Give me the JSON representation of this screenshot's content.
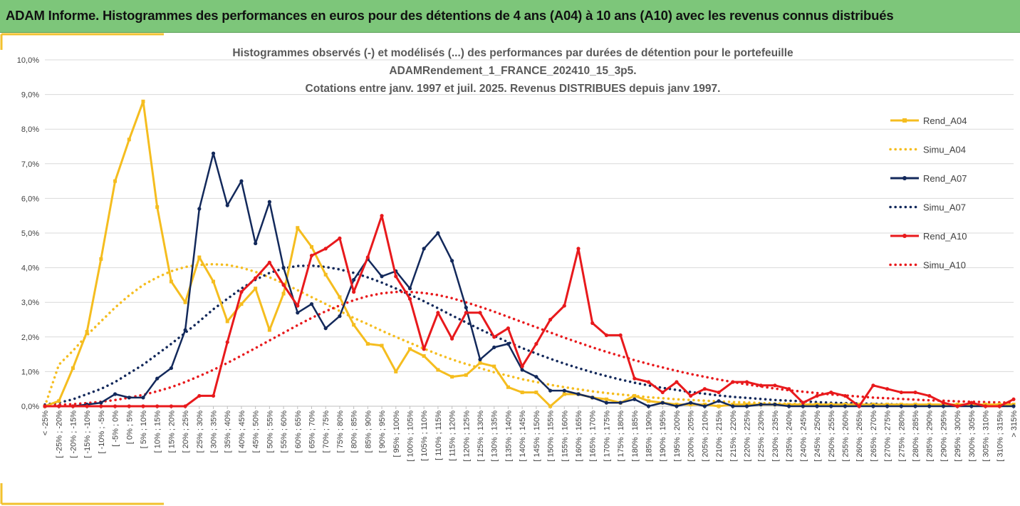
{
  "banner": {
    "title": "ADAM Informe. Histogrammes des performances en euros pour des détentions de 4 ans (A04) à 10 ans (A10) avec les revenus connus distribués"
  },
  "colors": {
    "banner_bg": "#7dc67a",
    "frame_accent": "#f2c12e",
    "A04": "#f5bd1f",
    "A07": "#13295b",
    "A10": "#e8191c"
  },
  "chart_data": {
    "type": "line",
    "title": [
      "Histogrammes observés (-) et modélisés (...) des performances par durées de détention pour le portefeuille",
      "ADAMRendement_1_FRANCE_202410_15_3p5.",
      "Cotations entre janv. 1997 et juil. 2025. Revenus DISTRIBUES depuis janv 1997."
    ],
    "ylim": [
      0,
      10
    ],
    "yticks": [
      "0,0%",
      "1,0%",
      "2,0%",
      "3,0%",
      "4,0%",
      "5,0%",
      "6,0%",
      "7,0%",
      "8,0%",
      "9,0%",
      "10,0%"
    ],
    "legend_position": "right",
    "categories": [
      "< -25%",
      "[ -25% ; -20%",
      "[ -20% ; -15%",
      "[ -15% ; -10%",
      "[ -10% ; -5%",
      "[ -5% ; 0%",
      "[ 0% ; 5%",
      "[ 5% ; 10%",
      "[ 10% ; 15%",
      "[ 15% ; 20%",
      "[ 20% ; 25%",
      "[ 25% ; 30%",
      "[ 30% ; 35%",
      "[ 35% ; 40%",
      "[ 40% ; 45%",
      "[ 45% ; 50%",
      "[ 50% ; 55%",
      "[ 55% ; 60%",
      "[ 60% ; 65%",
      "[ 65% ; 70%",
      "[ 70% ; 75%",
      "[ 75% ; 80%",
      "[ 80% ; 85%",
      "[ 85% ; 90%",
      "[ 90% ; 95%",
      "[ 95% ; 100%",
      "[ 100% ; 105%",
      "[ 105% ; 110%",
      "[ 110% ; 115%",
      "[ 115% ; 120%",
      "[ 120% ; 125%",
      "[ 125% ; 130%",
      "[ 130% ; 135%",
      "[ 135% ; 140%",
      "[ 140% ; 145%",
      "[ 145% ; 150%",
      "[ 150% ; 155%",
      "[ 155% ; 160%",
      "[ 160% ; 165%",
      "[ 165% ; 170%",
      "[ 170% ; 175%",
      "[ 175% ; 180%",
      "[ 180% ; 185%",
      "[ 185% ; 190%",
      "[ 190% ; 195%",
      "[ 195% ; 200%",
      "[ 200% ; 205%",
      "[ 205% ; 210%",
      "[ 210% ; 215%",
      "[ 215% ; 220%",
      "[ 220% ; 225%",
      "[ 225% ; 230%",
      "[ 230% ; 235%",
      "[ 235% ; 240%",
      "[ 240% ; 245%",
      "[ 245% ; 250%",
      "[ 250% ; 255%",
      "[ 255% ; 260%",
      "[ 260% ; 265%",
      "[ 265% ; 270%",
      "[ 270% ; 275%",
      "[ 275% ; 280%",
      "[ 280% ; 285%",
      "[ 285% ; 290%",
      "[ 290% ; 295%",
      "[ 295% ; 300%",
      "[ 300% ; 305%",
      "[ 305% ; 310%",
      "[ 310% ; 315%",
      "> 315%"
    ],
    "series": [
      {
        "name": "Rend_A04",
        "style": "solid",
        "marker": "square",
        "color": "#f5bd1f",
        "values": [
          0.0,
          0.15,
          1.1,
          2.15,
          4.25,
          6.5,
          7.7,
          8.8,
          5.75,
          3.6,
          3.0,
          4.3,
          3.6,
          2.45,
          2.95,
          3.4,
          2.2,
          3.25,
          5.15,
          4.6,
          3.8,
          3.15,
          2.35,
          1.8,
          1.75,
          1.0,
          1.65,
          1.45,
          1.05,
          0.85,
          0.9,
          1.25,
          1.15,
          0.55,
          0.4,
          0.4,
          0.0,
          0.35,
          0.35,
          0.25,
          0.2,
          0.1,
          0.3,
          0.15,
          0.1,
          0.05,
          0.05,
          0.05,
          0.0,
          0.05,
          0.05,
          0.05,
          0.05,
          0.05,
          0.05,
          0.05,
          0.05,
          0.05,
          0.05,
          0.05,
          0.05,
          0.05,
          0.05,
          0.05,
          0.05,
          0.05,
          0.05,
          0.05,
          0.05,
          0.05
        ]
      },
      {
        "name": "Simu_A04",
        "style": "dotted",
        "color": "#f5bd1f",
        "values": [
          0.0,
          1.2,
          1.6,
          2.05,
          2.45,
          2.85,
          3.2,
          3.5,
          3.72,
          3.9,
          4.02,
          4.08,
          4.1,
          4.08,
          4.0,
          3.88,
          3.72,
          3.55,
          3.35,
          3.15,
          2.95,
          2.75,
          2.55,
          2.37,
          2.18,
          2.0,
          1.83,
          1.66,
          1.5,
          1.35,
          1.22,
          1.1,
          0.98,
          0.88,
          0.78,
          0.7,
          0.62,
          0.55,
          0.49,
          0.43,
          0.38,
          0.34,
          0.3,
          0.26,
          0.23,
          0.2,
          0.18,
          0.16,
          0.14,
          0.12,
          0.11,
          0.09,
          0.08,
          0.07,
          0.06,
          0.06,
          0.05,
          0.04,
          0.04,
          0.03,
          0.03,
          0.03,
          0.02,
          0.02,
          0.02,
          0.02,
          0.01,
          0.01,
          0.01,
          0.01
        ]
      },
      {
        "name": "Rend_A07",
        "style": "solid",
        "marker": "circle",
        "color": "#13295b",
        "values": [
          0.0,
          0.0,
          0.0,
          0.05,
          0.1,
          0.35,
          0.25,
          0.25,
          0.8,
          1.1,
          2.2,
          5.7,
          7.3,
          5.8,
          6.5,
          4.7,
          5.9,
          4.0,
          2.7,
          2.95,
          2.25,
          2.6,
          3.65,
          4.25,
          3.75,
          3.9,
          3.4,
          4.55,
          5.0,
          4.2,
          2.85,
          1.35,
          1.7,
          1.8,
          1.05,
          0.85,
          0.45,
          0.45,
          0.35,
          0.25,
          0.1,
          0.1,
          0.2,
          0.0,
          0.1,
          0.0,
          0.1,
          0.0,
          0.15,
          0.0,
          0.0,
          0.05,
          0.05,
          0.0,
          0.0,
          0.0,
          0.0,
          0.0,
          0.0,
          0.0,
          0.0,
          0.0,
          0.0,
          0.0,
          0.0,
          0.0,
          0.0,
          0.0,
          0.0,
          0.0
        ]
      },
      {
        "name": "Simu_A07",
        "style": "dotted",
        "color": "#13295b",
        "values": [
          0.05,
          0.1,
          0.2,
          0.35,
          0.5,
          0.7,
          0.95,
          1.2,
          1.5,
          1.8,
          2.12,
          2.45,
          2.8,
          3.1,
          3.4,
          3.65,
          3.85,
          3.98,
          4.05,
          4.06,
          4.02,
          3.95,
          3.85,
          3.72,
          3.57,
          3.4,
          3.22,
          3.03,
          2.83,
          2.62,
          2.42,
          2.22,
          2.03,
          1.85,
          1.68,
          1.52,
          1.37,
          1.23,
          1.1,
          0.98,
          0.87,
          0.77,
          0.68,
          0.6,
          0.53,
          0.47,
          0.41,
          0.36,
          0.31,
          0.27,
          0.24,
          0.21,
          0.18,
          0.16,
          0.14,
          0.12,
          0.1,
          0.09,
          0.08,
          0.07,
          0.06,
          0.05,
          0.04,
          0.04,
          0.03,
          0.03,
          0.02,
          0.02,
          0.02,
          0.01
        ]
      },
      {
        "name": "Rend_A10",
        "style": "solid",
        "marker": "circle",
        "color": "#e8191c",
        "values": [
          0.0,
          0.0,
          0.0,
          0.0,
          0.0,
          0.0,
          0.0,
          0.0,
          0.0,
          0.0,
          0.0,
          0.3,
          0.3,
          1.85,
          3.3,
          3.7,
          4.15,
          3.5,
          2.9,
          4.35,
          4.55,
          4.85,
          3.3,
          4.3,
          5.5,
          3.75,
          3.1,
          1.65,
          2.7,
          1.95,
          2.7,
          2.7,
          2.0,
          2.25,
          1.15,
          1.8,
          2.5,
          2.9,
          4.55,
          2.4,
          2.05,
          2.05,
          0.8,
          0.7,
          0.4,
          0.7,
          0.3,
          0.5,
          0.4,
          0.7,
          0.7,
          0.6,
          0.6,
          0.5,
          0.1,
          0.3,
          0.4,
          0.3,
          0.0,
          0.6,
          0.5,
          0.4,
          0.4,
          0.3,
          0.1,
          0.0,
          0.1,
          0.0,
          0.0,
          0.2
        ]
      },
      {
        "name": "Simu_A10",
        "style": "dotted",
        "color": "#e8191c",
        "values": [
          0.02,
          0.04,
          0.06,
          0.09,
          0.13,
          0.18,
          0.25,
          0.33,
          0.43,
          0.55,
          0.7,
          0.87,
          1.05,
          1.25,
          1.46,
          1.68,
          1.9,
          2.12,
          2.34,
          2.55,
          2.74,
          2.91,
          3.06,
          3.18,
          3.26,
          3.3,
          3.3,
          3.27,
          3.21,
          3.12,
          3.0,
          2.87,
          2.73,
          2.58,
          2.43,
          2.28,
          2.13,
          1.98,
          1.84,
          1.7,
          1.57,
          1.45,
          1.33,
          1.22,
          1.12,
          1.02,
          0.93,
          0.85,
          0.77,
          0.7,
          0.63,
          0.57,
          0.51,
          0.46,
          0.42,
          0.38,
          0.34,
          0.31,
          0.28,
          0.25,
          0.23,
          0.21,
          0.19,
          0.17,
          0.16,
          0.14,
          0.13,
          0.12,
          0.11,
          0.11
        ]
      }
    ]
  }
}
